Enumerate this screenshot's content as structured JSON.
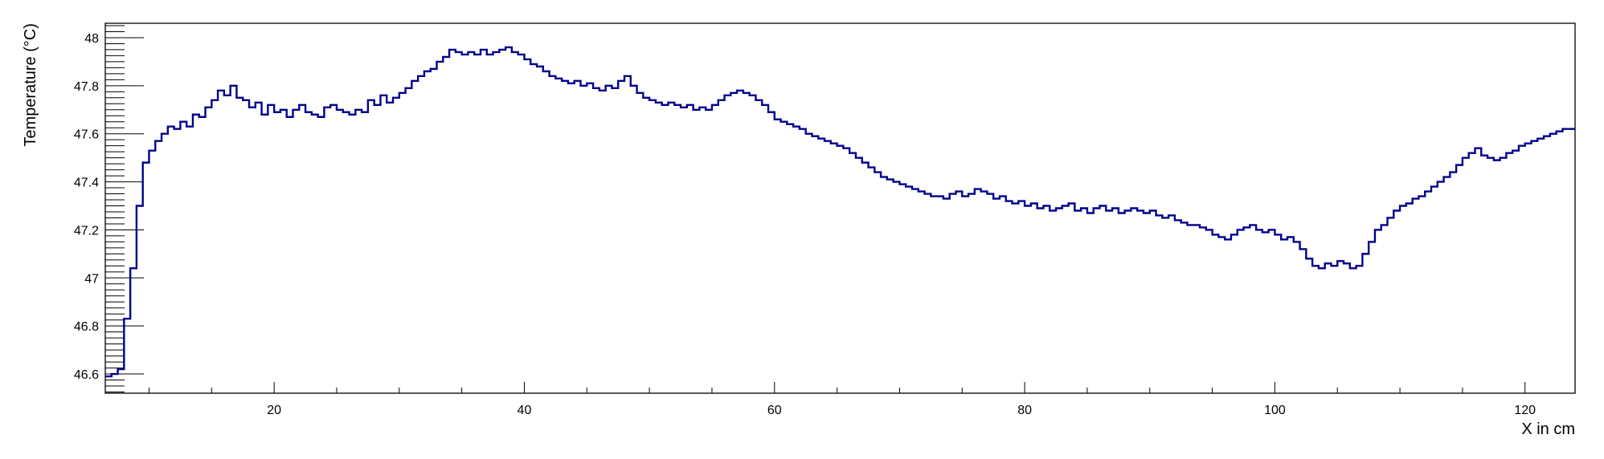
{
  "chart_data": {
    "type": "line",
    "style": "step",
    "xlabel": "X in cm",
    "ylabel": "Temperature (°C)",
    "xlim": [
      6.5,
      124
    ],
    "ylim": [
      46.52,
      48.06
    ],
    "x_ticks": [
      20,
      40,
      60,
      80,
      100,
      120
    ],
    "x_tick_labels": [
      "20",
      "40",
      "60",
      "80",
      "100",
      "120"
    ],
    "y_ticks": [
      46.6,
      46.8,
      47.0,
      47.2,
      47.4,
      47.6,
      47.8,
      48.0
    ],
    "y_tick_labels": [
      "46.6",
      "46.8",
      "47",
      "47.2",
      "47.4",
      "47.6",
      "47.8",
      "48"
    ],
    "grid": false,
    "legend": "none",
    "line_color": "#00008b",
    "series": [
      {
        "x": [
          6.5,
          7,
          7.5,
          8,
          8.5,
          9,
          9.5,
          10,
          10.5,
          11,
          11.5,
          12,
          12.5,
          13,
          13.5,
          14,
          14.5,
          15,
          15.5,
          16,
          16.5,
          17,
          17.5,
          18,
          18.5,
          19,
          19.5,
          20,
          20.5,
          21,
          21.5,
          22,
          22.5,
          23,
          23.5,
          24,
          24.5,
          25,
          25.5,
          26,
          26.5,
          27,
          27.5,
          28,
          28.5,
          29,
          29.5,
          30,
          30.5,
          31,
          31.5,
          32,
          32.5,
          33,
          33.5,
          34,
          34.5,
          35,
          35.5,
          36,
          36.5,
          37,
          37.5,
          38,
          38.5,
          39,
          39.5,
          40,
          40.5,
          41,
          41.5,
          42,
          42.5,
          43,
          43.5,
          44,
          44.5,
          45,
          45.5,
          46,
          46.5,
          47,
          47.5,
          48,
          48.5,
          49,
          49.5,
          50,
          50.5,
          51,
          51.5,
          52,
          52.5,
          53,
          53.5,
          54,
          54.5,
          55,
          55.5,
          56,
          56.5,
          57,
          57.5,
          58,
          58.5,
          59,
          59.5,
          60,
          60.5,
          61,
          61.5,
          62,
          62.5,
          63,
          63.5,
          64,
          64.5,
          65,
          65.5,
          66,
          66.5,
          67,
          67.5,
          68,
          68.5,
          69,
          69.5,
          70,
          70.5,
          71,
          71.5,
          72,
          72.5,
          73,
          73.5,
          74,
          74.5,
          75,
          75.5,
          76,
          76.5,
          77,
          77.5,
          78,
          78.5,
          79,
          79.5,
          80,
          80.5,
          81,
          81.5,
          82,
          82.5,
          83,
          83.5,
          84,
          84.5,
          85,
          85.5,
          86,
          86.5,
          87,
          87.5,
          88,
          88.5,
          89,
          89.5,
          90,
          90.5,
          91,
          91.5,
          92,
          92.5,
          93,
          93.5,
          94,
          94.5,
          95,
          95.5,
          96,
          96.5,
          97,
          97.5,
          98,
          98.5,
          99,
          99.5,
          100,
          100.5,
          101,
          101.5,
          102,
          102.5,
          103,
          103.5,
          104,
          104.5,
          105,
          105.5,
          106,
          106.5,
          107,
          107.5,
          108,
          108.5,
          109,
          109.5,
          110,
          110.5,
          111,
          111.5,
          112,
          112.5,
          113,
          113.5,
          114,
          114.5,
          115,
          115.5,
          116,
          116.5,
          117,
          117.5,
          118,
          118.5,
          119,
          119.5,
          120,
          120.5,
          121,
          121.5,
          122,
          122.5,
          123,
          123.5
        ],
        "y": [
          46.59,
          46.6,
          46.62,
          46.83,
          47.04,
          47.3,
          47.48,
          47.53,
          47.57,
          47.6,
          47.63,
          47.62,
          47.65,
          47.63,
          47.68,
          47.67,
          47.71,
          47.74,
          47.78,
          47.76,
          47.8,
          47.75,
          47.74,
          47.71,
          47.73,
          47.68,
          47.72,
          47.69,
          47.7,
          47.67,
          47.7,
          47.72,
          47.69,
          47.68,
          47.67,
          47.71,
          47.72,
          47.7,
          47.69,
          47.68,
          47.7,
          47.69,
          47.74,
          47.72,
          47.76,
          47.73,
          47.75,
          47.77,
          47.79,
          47.82,
          47.84,
          47.86,
          47.87,
          47.9,
          47.92,
          47.95,
          47.94,
          47.93,
          47.94,
          47.93,
          47.95,
          47.93,
          47.94,
          47.95,
          47.96,
          47.94,
          47.93,
          47.91,
          47.89,
          47.88,
          47.86,
          47.84,
          47.83,
          47.82,
          47.81,
          47.82,
          47.8,
          47.81,
          47.79,
          47.78,
          47.8,
          47.79,
          47.82,
          47.84,
          47.8,
          47.77,
          47.75,
          47.74,
          47.73,
          47.72,
          47.73,
          47.72,
          47.71,
          47.72,
          47.7,
          47.71,
          47.7,
          47.72,
          47.74,
          47.76,
          47.77,
          47.78,
          47.77,
          47.76,
          47.74,
          47.72,
          47.69,
          47.66,
          47.65,
          47.64,
          47.63,
          47.62,
          47.6,
          47.59,
          47.58,
          47.57,
          47.56,
          47.55,
          47.54,
          47.52,
          47.5,
          47.48,
          47.46,
          47.44,
          47.42,
          47.41,
          47.4,
          47.39,
          47.38,
          47.37,
          47.36,
          47.35,
          47.34,
          47.34,
          47.33,
          47.35,
          47.36,
          47.34,
          47.35,
          47.37,
          47.36,
          47.35,
          47.33,
          47.34,
          47.32,
          47.31,
          47.32,
          47.3,
          47.31,
          47.29,
          47.3,
          47.28,
          47.29,
          47.3,
          47.31,
          47.28,
          47.29,
          47.27,
          47.29,
          47.3,
          47.28,
          47.29,
          47.27,
          47.28,
          47.29,
          47.28,
          47.27,
          47.28,
          47.26,
          47.25,
          47.26,
          47.24,
          47.23,
          47.22,
          47.22,
          47.21,
          47.2,
          47.18,
          47.17,
          47.16,
          47.18,
          47.2,
          47.21,
          47.22,
          47.2,
          47.19,
          47.2,
          47.18,
          47.16,
          47.17,
          47.15,
          47.12,
          47.08,
          47.05,
          47.04,
          47.06,
          47.05,
          47.07,
          47.06,
          47.04,
          47.05,
          47.1,
          47.15,
          47.2,
          47.22,
          47.25,
          47.28,
          47.3,
          47.31,
          47.33,
          47.34,
          47.36,
          47.38,
          47.4,
          47.42,
          47.44,
          47.47,
          47.5,
          47.52,
          47.54,
          47.51,
          47.5,
          47.49,
          47.5,
          47.52,
          47.53,
          47.55,
          47.56,
          47.57,
          47.58,
          47.59,
          47.6,
          47.61,
          47.62,
          47.62
        ]
      }
    ]
  }
}
